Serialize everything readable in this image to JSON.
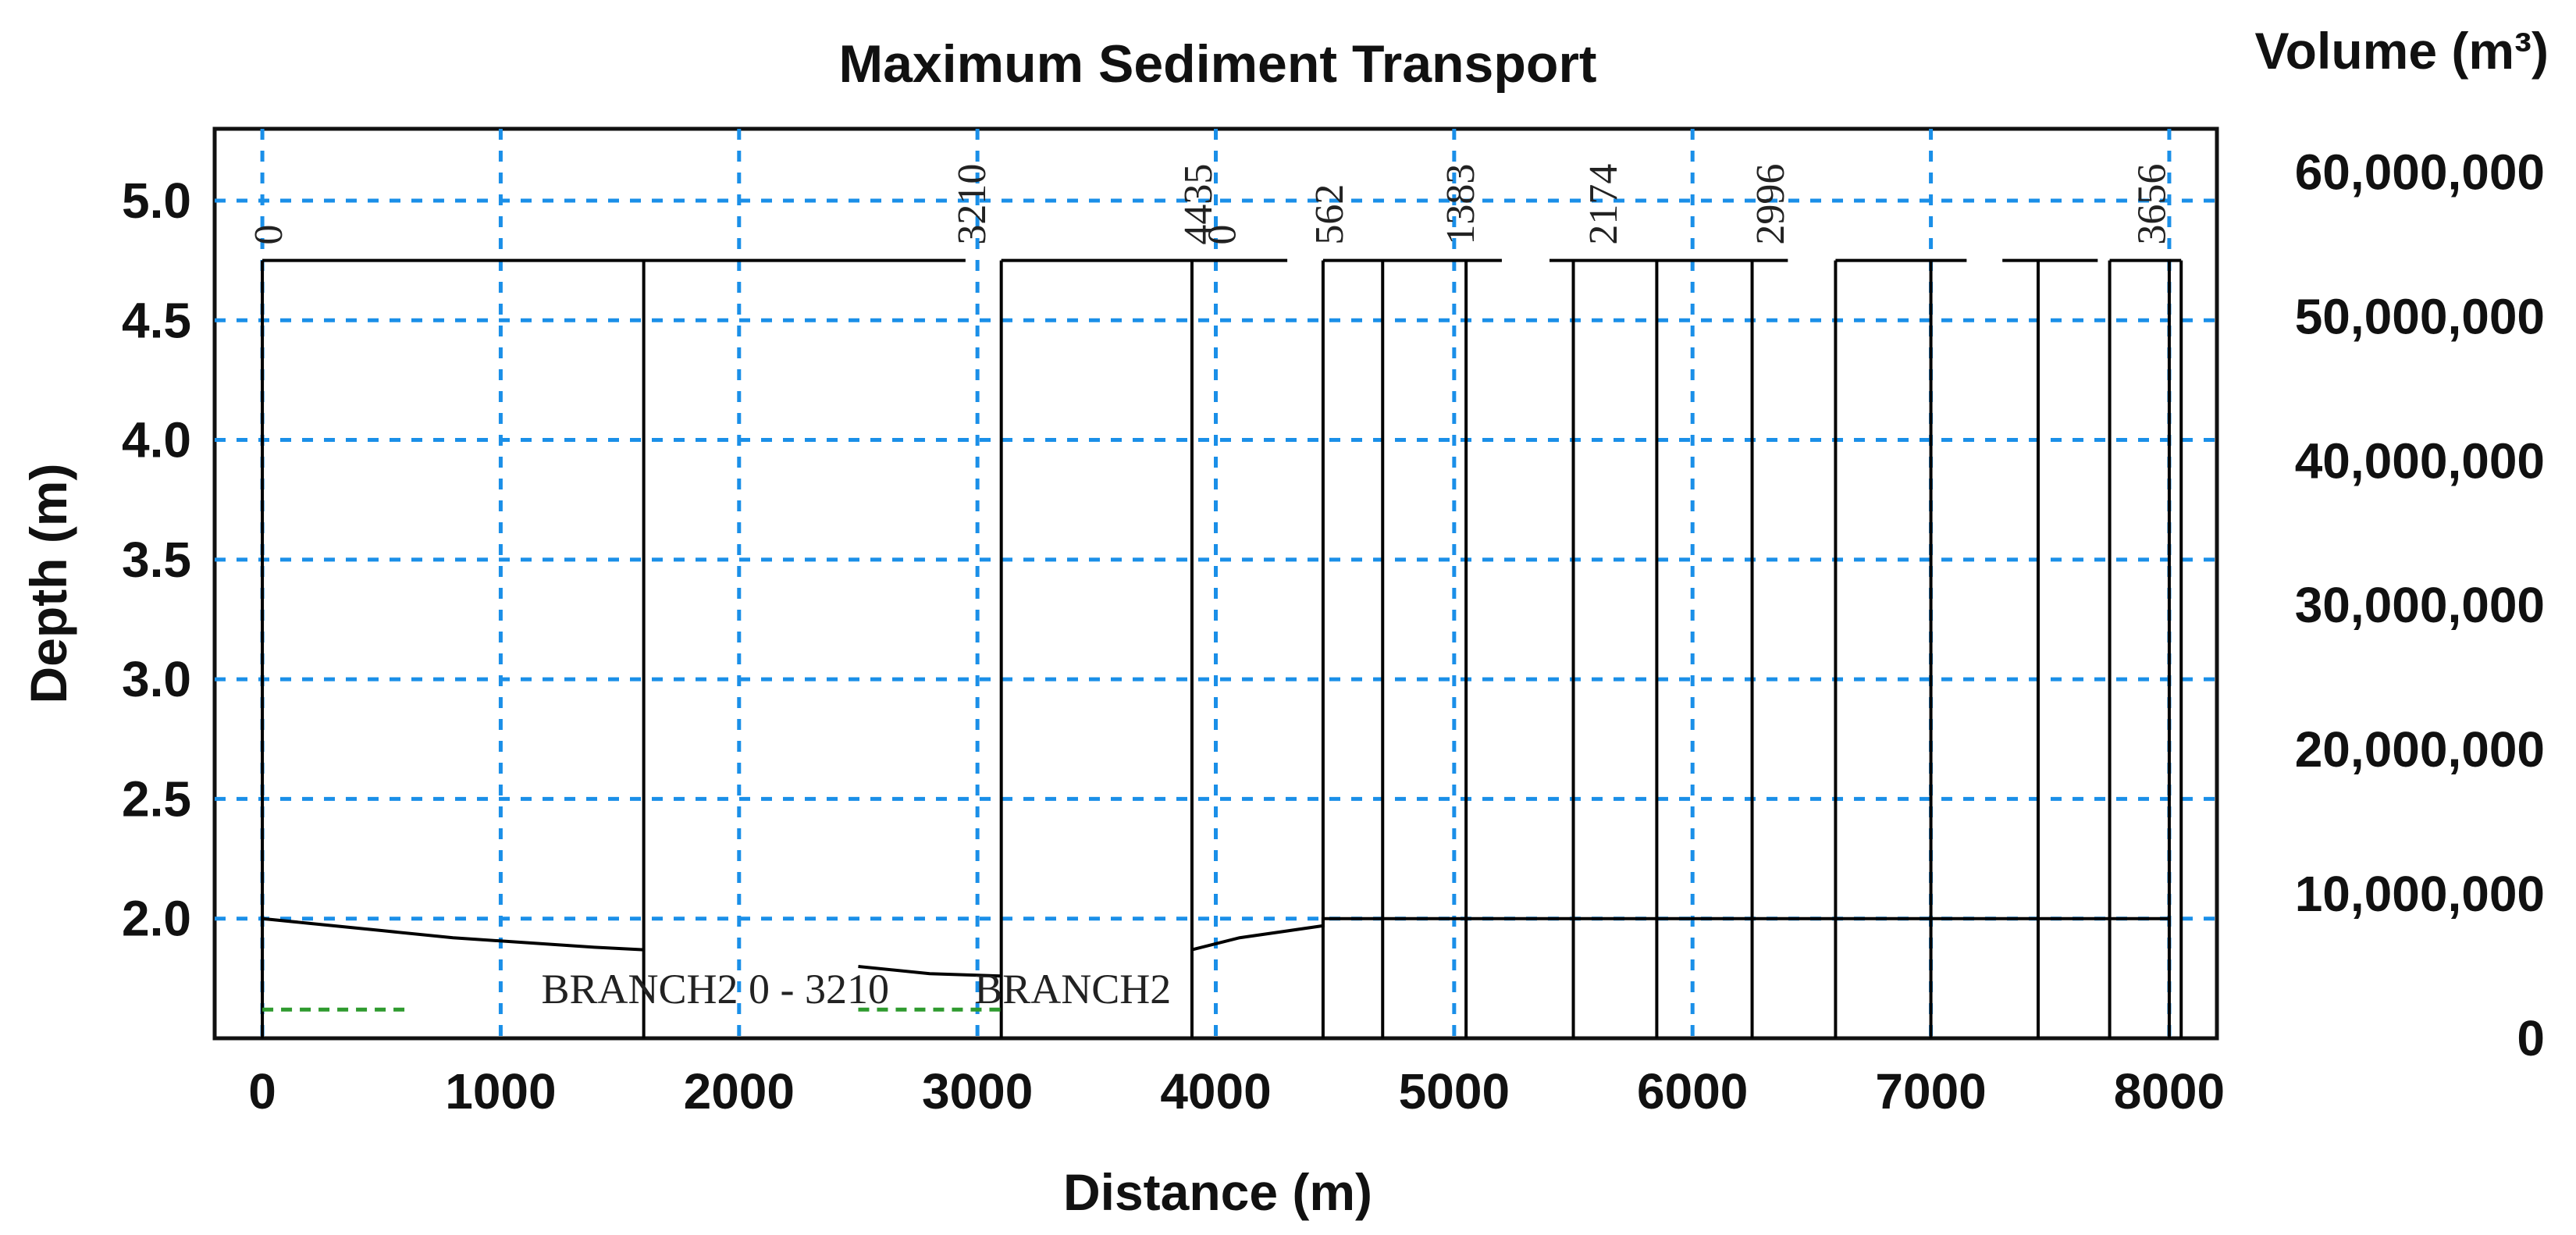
{
  "chart_data": {
    "type": "line",
    "title": "Maximum Sediment Transport",
    "xlabel": "Distance (m)",
    "ylabel": "Depth (m)",
    "y2label": "Volume (m³)",
    "xlim": [
      -200,
      8200
    ],
    "ylim": [
      1.5,
      5.3
    ],
    "y2lim": [
      0,
      63000000
    ],
    "x_ticks": [
      "0",
      "1000",
      "2000",
      "3000",
      "4000",
      "5000",
      "6000",
      "7000",
      "8000"
    ],
    "x_tick_values": [
      0,
      1000,
      2000,
      3000,
      4000,
      5000,
      6000,
      7000,
      8000
    ],
    "y_ticks": [
      "2.0",
      "2.5",
      "3.0",
      "3.5",
      "4.0",
      "4.5",
      "5.0"
    ],
    "y_tick_values": [
      2.0,
      2.5,
      3.0,
      3.5,
      4.0,
      4.5,
      5.0
    ],
    "y2_ticks": [
      "0",
      "10,000,000",
      "20,000,000",
      "30,000,000",
      "40,000,000",
      "50,000,000",
      "60,000,000"
    ],
    "y2_tick_values": [
      0,
      10000000,
      20000000,
      30000000,
      40000000,
      50000000,
      60000000
    ],
    "grid": true,
    "grid_color": "#1a8fe8",
    "line_color": "#000000",
    "dashed_color": "#2e9a2e",
    "chainage_labels": [
      {
        "text": "0",
        "x": 0
      },
      {
        "text": "3210",
        "x": 2950
      },
      {
        "text": "4435",
        "x": 3900
      },
      {
        "text": "0",
        "x": 4000
      },
      {
        "text": "562",
        "x": 4450
      },
      {
        "text": "1383",
        "x": 5000
      },
      {
        "text": "2174",
        "x": 5600
      },
      {
        "text": "2996",
        "x": 6300
      },
      {
        "text": "3656",
        "x": 7900
      }
    ],
    "branch_labels": [
      {
        "text": "BRANCH2  0 - 3210",
        "x": 1900
      },
      {
        "text": "BRANCH2",
        "x": 3400
      }
    ],
    "series": [
      {
        "x": [
          0,
          200,
          500,
          800,
          1100,
          1400,
          1600
        ],
        "y": [
          2.0,
          1.98,
          1.95,
          1.92,
          1.9,
          1.88,
          1.87
        ]
      },
      {
        "x": [
          2500,
          2800,
          3100
        ],
        "y": [
          1.8,
          1.77,
          1.76
        ]
      },
      {
        "x": [
          3900,
          4100,
          4450,
          4450,
          8000
        ],
        "y": [
          1.87,
          1.92,
          1.97,
          2.0,
          2.0
        ]
      }
    ],
    "verticals": [
      0,
      1600,
      3100,
      3900,
      4450,
      4700,
      5050,
      5500,
      5850,
      6250,
      6600,
      7000,
      7450,
      7750,
      8000,
      8050
    ],
    "top_line_segments": [
      [
        0,
        2950
      ],
      [
        3100,
        4300
      ],
      [
        4450,
        5200
      ],
      [
        5400,
        6400
      ],
      [
        6600,
        7150
      ],
      [
        7300,
        7700
      ],
      [
        7750,
        8050
      ]
    ],
    "dashed_segment": [
      [
        0,
        600
      ],
      [
        2500,
        3100
      ]
    ]
  }
}
